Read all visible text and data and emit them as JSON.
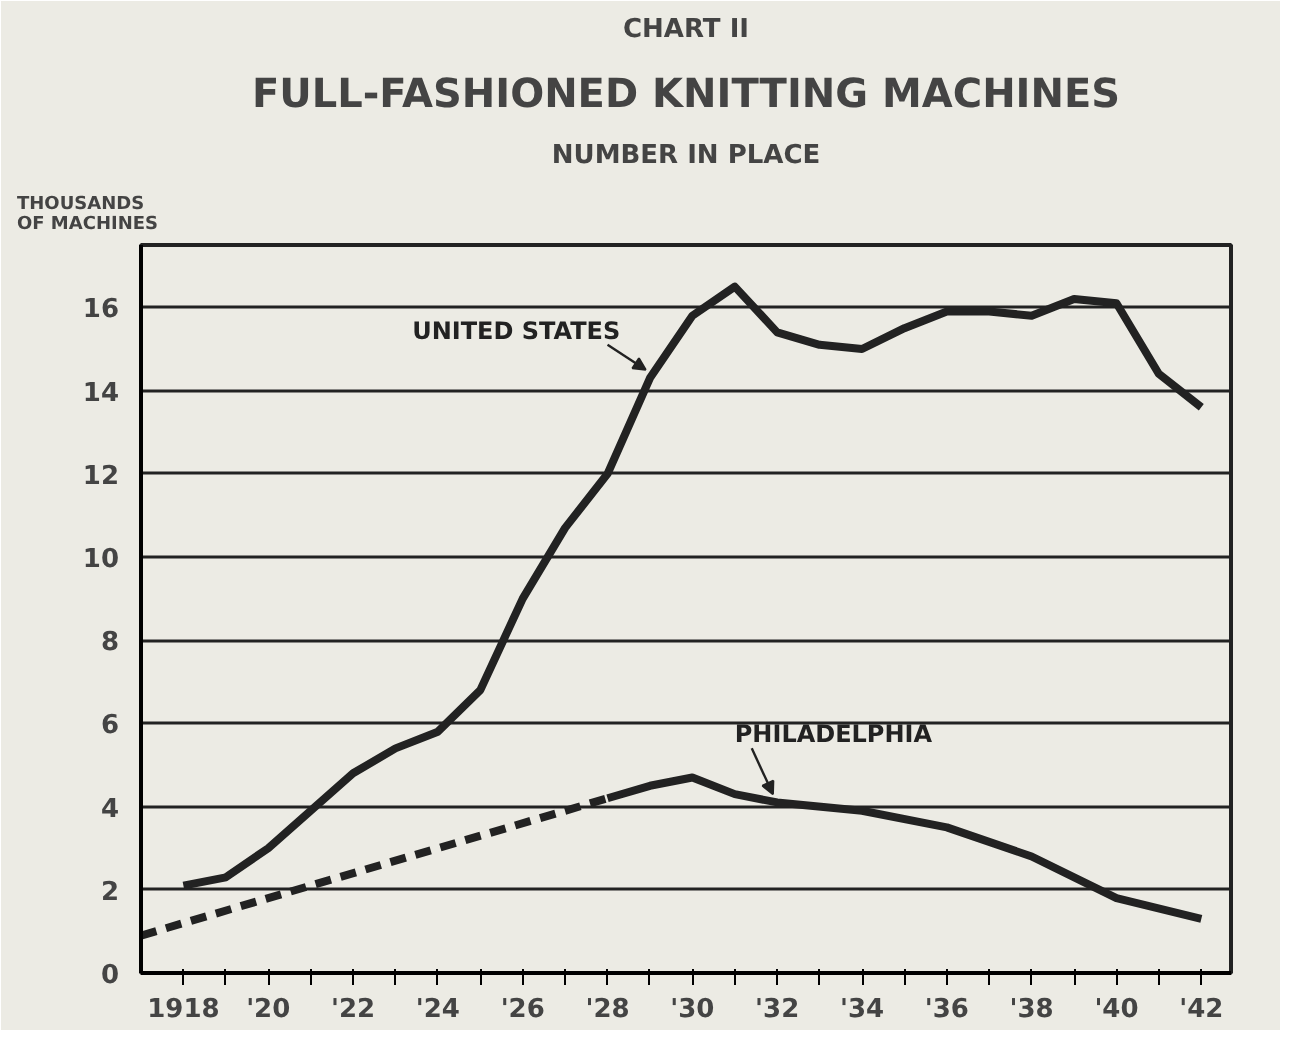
{
  "chart_data": {
    "type": "line",
    "title": "FULL-FASHIONED KNITTING MACHINES",
    "subtitle": "NUMBER IN PLACE",
    "ylabel": "THOUSANDS OF MACHINES",
    "annotations": [
      "CHART II"
    ],
    "xlim": [
      1917,
      1942.7
    ],
    "ylim": [
      0,
      17.5
    ],
    "xticks": [
      {
        "value": 1918,
        "label": "1918"
      },
      {
        "value": 1919,
        "label": null
      },
      {
        "value": 1920,
        "label": "'20"
      },
      {
        "value": 1921,
        "label": null
      },
      {
        "value": 1922,
        "label": "'22"
      },
      {
        "value": 1923,
        "label": null
      },
      {
        "value": 1924,
        "label": "'24"
      },
      {
        "value": 1925,
        "label": null
      },
      {
        "value": 1926,
        "label": "'26"
      },
      {
        "value": 1927,
        "label": null
      },
      {
        "value": 1928,
        "label": "'28"
      },
      {
        "value": 1929,
        "label": null
      },
      {
        "value": 1930,
        "label": "'30"
      },
      {
        "value": 1931,
        "label": null
      },
      {
        "value": 1932,
        "label": "'32"
      },
      {
        "value": 1933,
        "label": null
      },
      {
        "value": 1934,
        "label": "'34"
      },
      {
        "value": 1935,
        "label": null
      },
      {
        "value": 1936,
        "label": "'36"
      },
      {
        "value": 1937,
        "label": null
      },
      {
        "value": 1938,
        "label": "'38"
      },
      {
        "value": 1939,
        "label": null
      },
      {
        "value": 1940,
        "label": "'40"
      },
      {
        "value": 1941,
        "label": null
      },
      {
        "value": 1942,
        "label": "'42"
      }
    ],
    "yticks": [
      0,
      2,
      4,
      6,
      8,
      10,
      12,
      14,
      16
    ],
    "grid": "y",
    "series": [
      {
        "name": "UNITED STATES",
        "color": "#222222",
        "line_style": "solid",
        "x": [
          1918,
          1919,
          1920,
          1921,
          1922,
          1923,
          1924,
          1925,
          1926,
          1927,
          1928,
          1929,
          1930,
          1931,
          1932,
          1933,
          1934,
          1935,
          1936,
          1937,
          1938,
          1939,
          1940,
          1941,
          1942
        ],
        "values": [
          2.1,
          2.3,
          3.0,
          3.9,
          4.8,
          5.4,
          5.8,
          6.8,
          9.0,
          10.7,
          12.0,
          14.3,
          15.8,
          16.5,
          15.4,
          15.1,
          15.0,
          15.5,
          15.9,
          15.9,
          15.8,
          16.2,
          16.1,
          14.4,
          13.6
        ]
      },
      {
        "color": "#222222",
        "line_style": "dashed",
        "x": [
          1917,
          1928
        ],
        "values": [
          0.9,
          4.2
        ]
      },
      {
        "name": "PHILADELPHIA",
        "color": "#222222",
        "line_style": "solid",
        "x": [
          1928,
          1929,
          1930,
          1931,
          1932,
          1934,
          1936,
          1938,
          1940,
          1942
        ],
        "values": [
          4.2,
          4.5,
          4.7,
          4.3,
          4.1,
          3.9,
          3.5,
          2.8,
          1.8,
          1.3
        ]
      }
    ]
  }
}
